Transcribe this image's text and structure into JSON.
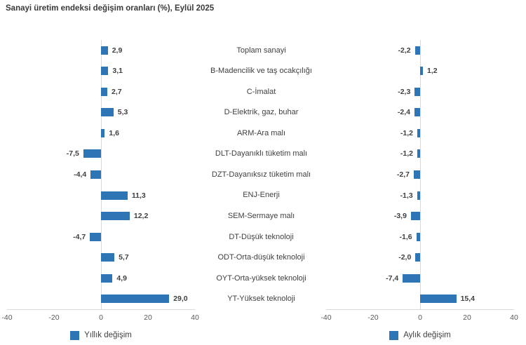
{
  "title": "Sanayi üretim endeksi değişim oranları (%), Eylül 2025",
  "colors": {
    "bar": "#2e75b6",
    "axis_line": "#d9d9d9",
    "zero_line": "#d9d9d9",
    "value_text": "#404040",
    "category_text": "#3f3f3f",
    "tick_text": "#595959"
  },
  "chart_data": {
    "type": "bar",
    "orientation": "horizontal",
    "title": "Sanayi üretim endeksi değişim oranları (%), Eylül 2025",
    "categories": [
      "Toplam sanayi",
      "B-Madencilik ve taş ocakçılığı",
      "C-İmalat",
      "D-Elektrik, gaz, buhar",
      "ARM-Ara malı",
      "DLT-Dayanıklı tüketim malı",
      "DZT-Dayanıksız tüketim malı",
      "ENJ-Enerji",
      "SEM-Sermaye malı",
      "DT-Düşük teknoloji",
      "ODT-Orta-düşük teknoloji",
      "OYT-Orta-yüksek teknoloji",
      "YT-Yüksek teknoloji"
    ],
    "series": [
      {
        "name": "Yıllık değişim",
        "values": [
          2.9,
          3.1,
          2.7,
          5.3,
          1.6,
          -7.5,
          -4.4,
          11.3,
          12.2,
          -4.7,
          5.7,
          4.9,
          29.0
        ]
      },
      {
        "name": "Aylık değişim",
        "values": [
          -2.2,
          1.2,
          -2.3,
          -2.4,
          -1.2,
          -1.2,
          -2.7,
          -1.3,
          -3.9,
          -1.6,
          -2.0,
          -7.4,
          15.4
        ]
      }
    ],
    "xlim": [
      -40,
      40
    ],
    "ticks": [
      -40,
      -20,
      0,
      20,
      40
    ],
    "decimal_separator": ",",
    "grid": false,
    "legend_position": "bottom",
    "data_labels": true
  }
}
